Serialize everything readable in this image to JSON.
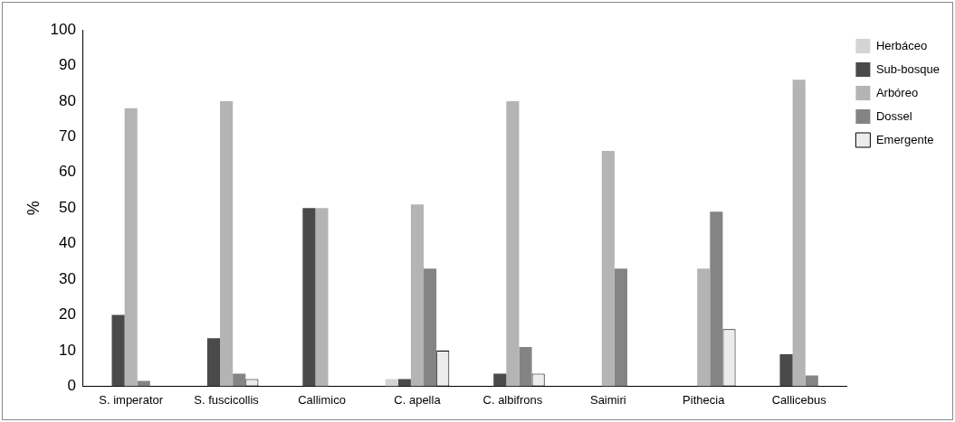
{
  "chart_data": {
    "type": "bar",
    "ylabel": "%",
    "categories": [
      "S. imperator",
      "S. fuscicollis",
      "Callimico",
      "C. apella",
      "C. albifrons",
      "Saimiri",
      "Pithecia",
      "Callicebus"
    ],
    "series": [
      {
        "name": "Herbáceo",
        "color": "#d4d4d4",
        "values": [
          0,
          0,
          0,
          2,
          0,
          0,
          0,
          0
        ]
      },
      {
        "name": "Sub-bosque",
        "color": "#4a4a4a",
        "values": [
          20,
          13.5,
          50,
          2,
          3.5,
          0,
          0,
          9
        ]
      },
      {
        "name": "Arbóreo",
        "color": "#b4b4b4",
        "values": [
          78,
          80,
          50,
          51,
          80,
          66,
          33,
          86
        ]
      },
      {
        "name": "Dossel",
        "color": "#848484",
        "values": [
          1.5,
          3.5,
          0,
          33,
          11,
          33,
          49,
          3
        ]
      },
      {
        "name": "Emergente",
        "color": "#ececec",
        "values": [
          0,
          2,
          0,
          10,
          3.5,
          0,
          16,
          0
        ]
      }
    ],
    "ylim": [
      0,
      100
    ],
    "yticks": [
      0,
      10,
      20,
      30,
      40,
      50,
      60,
      70,
      80,
      90,
      100
    ],
    "grid": false,
    "legend": "top right"
  }
}
